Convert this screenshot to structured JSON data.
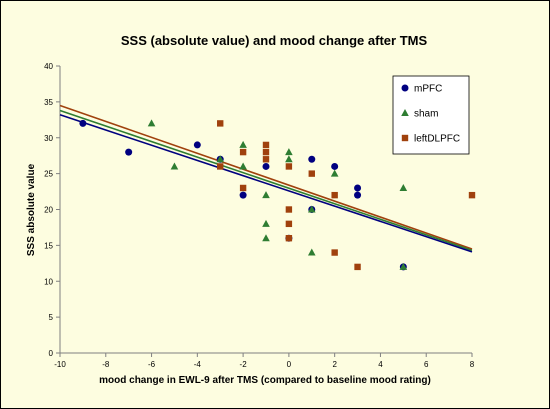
{
  "chart_data": {
    "type": "scatter",
    "title": "SSS (absolute value) and mood change after TMS",
    "xlabel": "mood change in EWL-9 after TMS (compared to baseline mood rating)",
    "ylabel": "SSS absolute value",
    "xlim": [
      -10,
      8
    ],
    "ylim": [
      0,
      40
    ],
    "x_ticks": [
      -10,
      -8,
      -6,
      -4,
      -2,
      0,
      2,
      4,
      6,
      8
    ],
    "y_ticks": [
      0,
      5,
      10,
      15,
      20,
      25,
      30,
      35,
      40
    ],
    "grid": false,
    "legend_position": "top-right",
    "series": [
      {
        "name": "mPFC",
        "marker": "circle",
        "color": "#000080",
        "points": [
          [
            -9,
            32
          ],
          [
            -7,
            28
          ],
          [
            -4,
            29
          ],
          [
            -3,
            27
          ],
          [
            -2,
            22
          ],
          [
            -1,
            26
          ],
          [
            0,
            16
          ],
          [
            1,
            27
          ],
          [
            1,
            20
          ],
          [
            2,
            26
          ],
          [
            3,
            23
          ],
          [
            3,
            22
          ],
          [
            5,
            12
          ]
        ],
        "trendline": [
          [
            -10,
            33.2
          ],
          [
            8,
            14.1
          ]
        ]
      },
      {
        "name": "sham",
        "marker": "triangle",
        "color": "#2e7d32",
        "points": [
          [
            -6,
            32
          ],
          [
            -5,
            26
          ],
          [
            -3,
            27
          ],
          [
            -2,
            29
          ],
          [
            -2,
            26
          ],
          [
            -1,
            22
          ],
          [
            -1,
            18
          ],
          [
            -1,
            16
          ],
          [
            0,
            28
          ],
          [
            0,
            27
          ],
          [
            1,
            20
          ],
          [
            1,
            14
          ],
          [
            2,
            25
          ],
          [
            5,
            23
          ],
          [
            5,
            12
          ]
        ],
        "trendline": [
          [
            -10,
            33.8
          ],
          [
            8,
            14.3
          ]
        ]
      },
      {
        "name": "leftDLPFC",
        "marker": "square",
        "color": "#a0410d",
        "points": [
          [
            -3,
            32
          ],
          [
            -3,
            26
          ],
          [
            -2,
            28
          ],
          [
            -2,
            23
          ],
          [
            -1,
            29
          ],
          [
            -1,
            28
          ],
          [
            -1,
            27
          ],
          [
            0,
            26
          ],
          [
            0,
            20
          ],
          [
            0,
            18
          ],
          [
            0,
            16
          ],
          [
            1,
            25
          ],
          [
            2,
            22
          ],
          [
            2,
            14
          ],
          [
            3,
            12
          ],
          [
            8,
            22
          ]
        ],
        "trendline": [
          [
            -10,
            34.5
          ],
          [
            8,
            14.5
          ]
        ]
      }
    ]
  }
}
